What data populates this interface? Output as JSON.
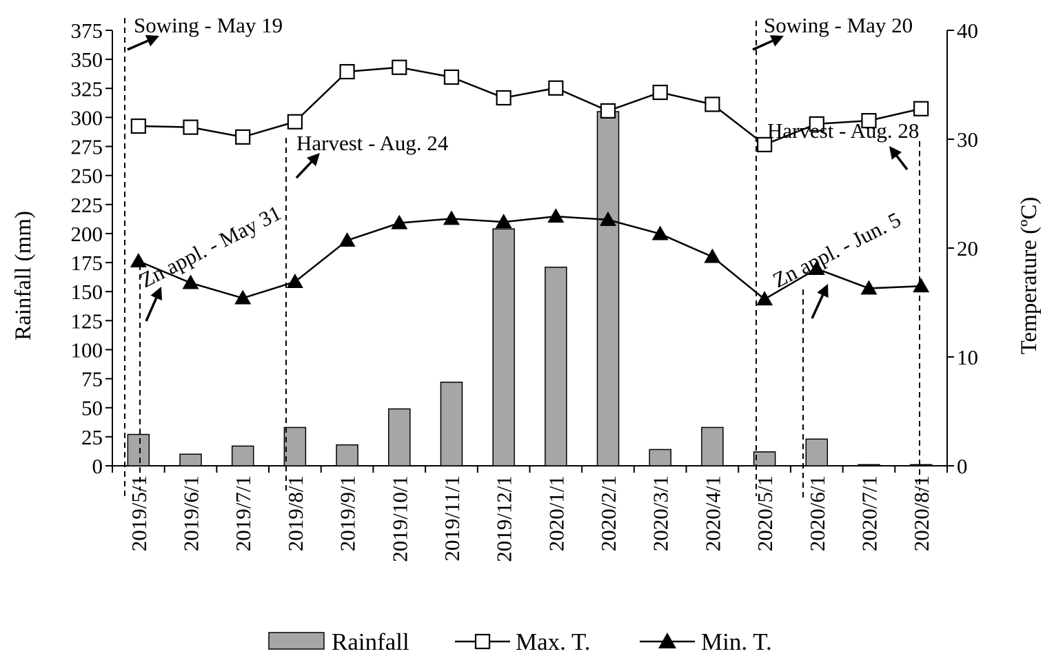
{
  "chart_data": {
    "type": "bar+line",
    "categories": [
      "2019/5/1",
      "2019/6/1",
      "2019/7/1",
      "2019/8/1",
      "2019/9/1",
      "2019/10/1",
      "2019/11/1",
      "2019/12/1",
      "2020/1/1",
      "2020/2/1",
      "2020/3/1",
      "2020/4/1",
      "2020/5/1",
      "2020/6/1",
      "2020/7/1",
      "2020/8/1"
    ],
    "series": [
      {
        "name": "Rainfall",
        "type": "bar",
        "axis": "left",
        "values": [
          27,
          10,
          17,
          33,
          18,
          49,
          72,
          204,
          171,
          305,
          14,
          33,
          12,
          23,
          1,
          1
        ]
      },
      {
        "name": "Max. T.",
        "type": "line",
        "marker": "open-square",
        "axis": "right",
        "values": [
          31.2,
          31.1,
          30.2,
          31.6,
          36.2,
          36.6,
          35.7,
          33.8,
          34.7,
          32.6,
          34.3,
          33.2,
          29.5,
          31.4,
          31.7,
          32.8
        ]
      },
      {
        "name": "Min. T.",
        "type": "line",
        "marker": "filled-triangle",
        "axis": "right",
        "values": [
          18.8,
          16.8,
          15.4,
          16.9,
          20.7,
          22.3,
          22.7,
          22.4,
          22.9,
          22.6,
          21.3,
          19.2,
          15.3,
          18.1,
          16.3,
          16.5
        ]
      }
    ],
    "ylabel_left": "Rainfall (mm)",
    "ylabel_right": "Temperature (ºC)",
    "ylim_left": [
      0,
      375
    ],
    "yticks_left": [
      "0",
      "25",
      "50",
      "75",
      "100",
      "125",
      "150",
      "175",
      "200",
      "225",
      "250",
      "275",
      "300",
      "325",
      "350",
      "375"
    ],
    "ylim_right": [
      0,
      40
    ],
    "yticks_right": [
      "0",
      "10",
      "20",
      "30",
      "40"
    ],
    "annotations": [
      {
        "text": "Sowing - May 19"
      },
      {
        "text": "Harvest - Aug. 24"
      },
      {
        "text": "Zn appl. - May 31"
      },
      {
        "text": "Sowing - May 20"
      },
      {
        "text": "Harvest - Aug. 28"
      },
      {
        "text": "Zn appl. - Jun. 5"
      }
    ],
    "legend": {
      "position": "bottom",
      "items": [
        "Rainfall",
        "Max. T.",
        "Min. T."
      ]
    },
    "colors": {
      "bar": "#a6a6a6",
      "line": "#000000"
    }
  }
}
